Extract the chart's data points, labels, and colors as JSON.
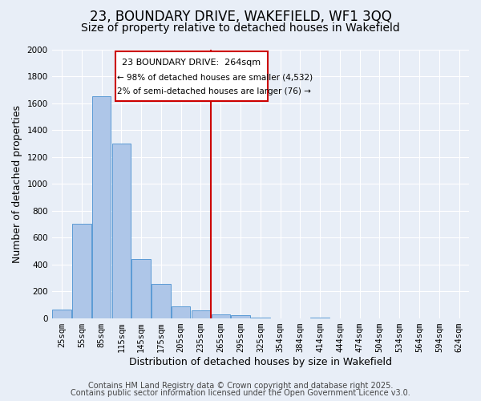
{
  "title1": "23, BOUNDARY DRIVE, WAKEFIELD, WF1 3QQ",
  "title2": "Size of property relative to detached houses in Wakefield",
  "xlabel": "Distribution of detached houses by size in Wakefield",
  "ylabel": "Number of detached properties",
  "bar_labels": [
    "25sqm",
    "55sqm",
    "85sqm",
    "115sqm",
    "145sqm",
    "175sqm",
    "205sqm",
    "235sqm",
    "265sqm",
    "295sqm",
    "325sqm",
    "354sqm",
    "384sqm",
    "414sqm",
    "444sqm",
    "474sqm",
    "504sqm",
    "534sqm",
    "564sqm",
    "594sqm",
    "624sqm"
  ],
  "bar_values": [
    65,
    700,
    1650,
    1300,
    440,
    255,
    90,
    55,
    30,
    20,
    5,
    0,
    0,
    3,
    0,
    0,
    0,
    0,
    0,
    0,
    0
  ],
  "bar_color": "#aec6e8",
  "bar_edge_color": "#5b9bd5",
  "vline_color": "#cc0000",
  "annotation_title": "23 BOUNDARY DRIVE:  264sqm",
  "annotation_line1": "← 98% of detached houses are smaller (4,532)",
  "annotation_line2": "2% of semi-detached houses are larger (76) →",
  "annotation_box_color": "#ffffff",
  "annotation_box_edge": "#cc0000",
  "ylim": [
    0,
    2000
  ],
  "background_color": "#e8eef7",
  "plot_bg_color": "#e8eef7",
  "footer1": "Contains HM Land Registry data © Crown copyright and database right 2025.",
  "footer2": "Contains public sector information licensed under the Open Government Licence v3.0.",
  "title1_fontsize": 12,
  "title2_fontsize": 10,
  "xlabel_fontsize": 9,
  "ylabel_fontsize": 9,
  "tick_fontsize": 7.5,
  "footer_fontsize": 7,
  "ann_title_fontsize": 8,
  "ann_text_fontsize": 7.5
}
